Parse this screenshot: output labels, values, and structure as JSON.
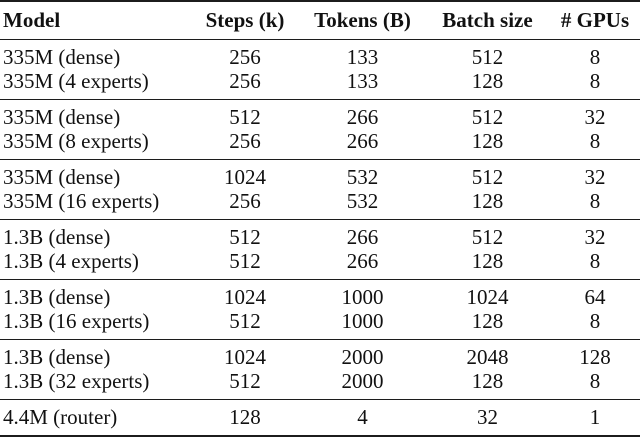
{
  "table": {
    "columns": [
      "Model",
      "Steps (k)",
      "Tokens (B)",
      "Batch size",
      "# GPUs"
    ],
    "groups": [
      {
        "rows": [
          [
            "335M (dense)",
            "256",
            "133",
            "512",
            "8"
          ],
          [
            "335M (4 experts)",
            "256",
            "133",
            "128",
            "8"
          ]
        ]
      },
      {
        "rows": [
          [
            "335M (dense)",
            "512",
            "266",
            "512",
            "32"
          ],
          [
            "335M (8 experts)",
            "256",
            "266",
            "128",
            "8"
          ]
        ]
      },
      {
        "rows": [
          [
            "335M (dense)",
            "1024",
            "532",
            "512",
            "32"
          ],
          [
            "335M (16 experts)",
            "256",
            "532",
            "128",
            "8"
          ]
        ]
      },
      {
        "rows": [
          [
            "1.3B (dense)",
            "512",
            "266",
            "512",
            "32"
          ],
          [
            "1.3B (4 experts)",
            "512",
            "266",
            "128",
            "8"
          ]
        ]
      },
      {
        "rows": [
          [
            "1.3B (dense)",
            "1024",
            "1000",
            "1024",
            "64"
          ],
          [
            "1.3B (16 experts)",
            "512",
            "1000",
            "128",
            "8"
          ]
        ]
      },
      {
        "rows": [
          [
            "1.3B (dense)",
            "1024",
            "2000",
            "2048",
            "128"
          ],
          [
            "1.3B (32 experts)",
            "512",
            "2000",
            "128",
            "8"
          ]
        ]
      },
      {
        "rows": [
          [
            "4.4M (router)",
            "128",
            "4",
            "32",
            "1"
          ]
        ]
      }
    ]
  },
  "colors": {
    "background": "#ffffff",
    "text": "#111111",
    "rule": "#1c1c1c"
  }
}
